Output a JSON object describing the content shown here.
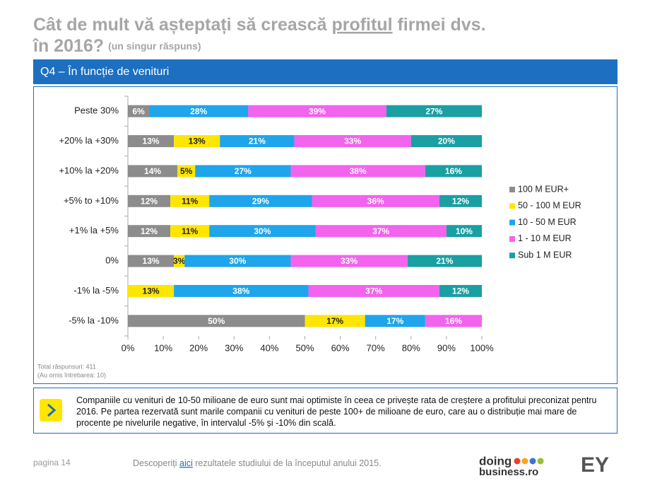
{
  "header": {
    "title_a": "Cât de mult vă așteptați să crească ",
    "title_underlined": "profitul",
    "title_b": " firmei dvs.",
    "title_line2": "în 2016?",
    "title_note": "(un singur răspuns)",
    "banner": "Q4 – În funcție de venituri"
  },
  "chart_data": {
    "type": "stacked-barh",
    "categories": [
      "Peste 30%",
      "+20% la +30%",
      "+10% la +20%",
      "+5% to +10%",
      "+1% la +5%",
      "0%",
      "-1% la -5%",
      "-5% la -10%"
    ],
    "series": [
      {
        "name": "100 M EUR+",
        "color": "#8c8c8c",
        "label_color": "#ffffff",
        "values": [
          6,
          13,
          14,
          12,
          12,
          13,
          null,
          50
        ],
        "value_labels": [
          "6%",
          "13%",
          "14%",
          "12%",
          "12%",
          "13%",
          null,
          "50%"
        ]
      },
      {
        "name": "50 - 100 M EUR",
        "color": "#ffe600",
        "label_color": "#222222",
        "values": [
          null,
          13,
          5,
          11,
          11,
          3,
          13,
          17
        ],
        "value_labels": [
          null,
          "13%",
          "5%",
          "11%",
          "11%",
          "3%",
          "13%",
          "17%"
        ]
      },
      {
        "name": "10 - 50 M EUR",
        "color": "#1ea5ec",
        "label_color": "#ffffff",
        "values": [
          28,
          21,
          27,
          29,
          30,
          30,
          38,
          17
        ],
        "value_labels": [
          "28%",
          "21%",
          "27%",
          "29%",
          "30%",
          "30%",
          "38%",
          "17%"
        ]
      },
      {
        "name": "1 - 10 M EUR",
        "color": "#f263ee",
        "label_color": "#ffffff",
        "values": [
          39,
          33,
          38,
          36,
          37,
          33,
          37,
          16
        ],
        "value_labels": [
          "39%",
          "33%",
          "38%",
          "36%",
          "37%",
          "33%",
          "37%",
          "16%"
        ]
      },
      {
        "name": "Sub 1 M EUR",
        "color": "#1a9fa3",
        "label_color": "#ffffff",
        "values": [
          27,
          20,
          16,
          12,
          10,
          21,
          12,
          null
        ],
        "value_labels": [
          "27%",
          "20%",
          "16%",
          "12%",
          "10%",
          "21%",
          "12%",
          null
        ]
      }
    ],
    "xlim": [
      0,
      100
    ],
    "xticks": [
      {
        "value": 0,
        "label": "0%"
      },
      {
        "value": 10,
        "label": "10%"
      },
      {
        "value": 20,
        "label": "20%"
      },
      {
        "value": 30,
        "label": "30%"
      },
      {
        "value": 40,
        "label": "40%"
      },
      {
        "value": 50,
        "label": "50%"
      },
      {
        "value": 60,
        "label": "60%"
      },
      {
        "value": 70,
        "label": "70%"
      },
      {
        "value": 80,
        "label": "80%"
      },
      {
        "value": 90,
        "label": "90%"
      },
      {
        "value": 100,
        "label": "100%"
      }
    ],
    "legend": "right"
  },
  "notes": {
    "total": "Total răspunsuri: 411",
    "omitted": "(Au omis întrebarea: 10)"
  },
  "insight": "Companiile cu venituri de 10-50 milioane de euro sunt mai optimiste în ceea ce privește rata de creștere a profitului preconizat pentru 2016. Pe partea rezervată sunt marile companii cu venituri de peste 100+ de milioane de euro, care au o distribuție mai mare de procente pe nivelurile negative, în intervalul -5% și -10% din scală.",
  "footer": {
    "page": "pagina 14",
    "text_a": "Descoperiți ",
    "link": "aici",
    "text_b": " rezultatele studiului de la începutul anului 2015.",
    "logo_a": "doing",
    "logo_b": "business.ro",
    "logo_ey": "EY"
  }
}
